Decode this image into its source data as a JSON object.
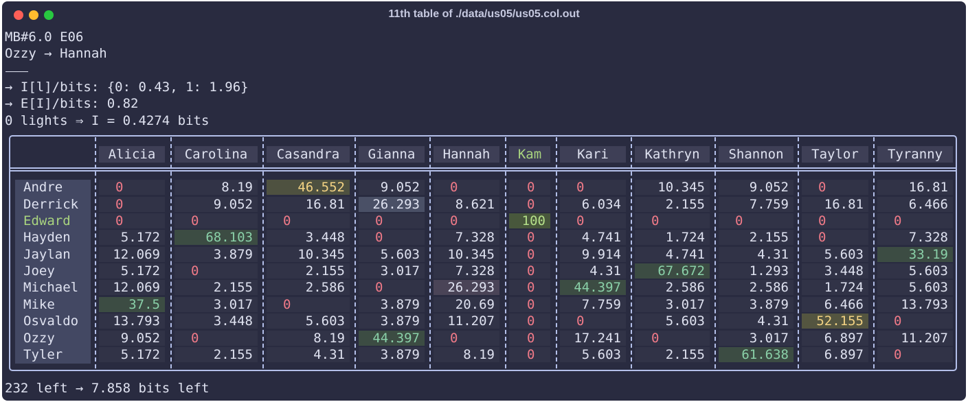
{
  "window": {
    "title": "11th table of ./data/us05/us05.col.out"
  },
  "header_lines": [
    "MB#6.0 E06",
    "Ozzy → Hannah",
    "→ I[l]/bits: {0: 0.43, 1: 1.96}",
    "→ E[I]/bits: 0.82",
    "0 lights ⇒ I = 0.4274 bits"
  ],
  "footer": "232 left → 7.858 bits left",
  "columns": [
    "Alicia",
    "Carolina",
    "Casandra",
    "Gianna",
    "Hannah",
    "Kam",
    "Kari",
    "Kathryn",
    "Shannon",
    "Taylor",
    "Tyranny"
  ],
  "rows": [
    {
      "name": "Andre",
      "values": [
        "0",
        "8.19",
        "46.552",
        "9.052",
        "0",
        "0",
        "0",
        "10.345",
        "9.052",
        "0",
        "16.81"
      ]
    },
    {
      "name": "Derrick",
      "values": [
        "0",
        "9.052",
        "16.81",
        "26.293",
        "8.621",
        "0",
        "6.034",
        "2.155",
        "7.759",
        "16.81",
        "6.466"
      ]
    },
    {
      "name": "Edward",
      "values": [
        "0",
        "0",
        "0",
        "0",
        "0",
        "100",
        "0",
        "0",
        "0",
        "0",
        "0"
      ]
    },
    {
      "name": "Hayden",
      "values": [
        "5.172",
        "68.103",
        "3.448",
        "0",
        "7.328",
        "0",
        "4.741",
        "1.724",
        "2.155",
        "0",
        "7.328"
      ]
    },
    {
      "name": "Jaylan",
      "values": [
        "12.069",
        "3.879",
        "10.345",
        "5.603",
        "10.345",
        "0",
        "9.914",
        "4.741",
        "4.31",
        "5.603",
        "33.19"
      ]
    },
    {
      "name": "Joey",
      "values": [
        "5.172",
        "0",
        "2.155",
        "3.017",
        "7.328",
        "0",
        "4.31",
        "67.672",
        "1.293",
        "3.448",
        "5.603"
      ]
    },
    {
      "name": "Michael",
      "values": [
        "12.069",
        "2.155",
        "2.586",
        "0",
        "26.293",
        "0",
        "44.397",
        "2.586",
        "2.586",
        "1.724",
        "5.603"
      ]
    },
    {
      "name": "Mike",
      "values": [
        "37.5",
        "3.017",
        "0",
        "3.879",
        "20.69",
        "0",
        "7.759",
        "3.017",
        "3.879",
        "6.466",
        "13.793"
      ]
    },
    {
      "name": "Osvaldo",
      "values": [
        "13.793",
        "3.448",
        "5.603",
        "3.879",
        "11.207",
        "0",
        "0",
        "5.603",
        "4.31",
        "52.155",
        "0"
      ]
    },
    {
      "name": "Ozzy",
      "values": [
        "9.052",
        "0",
        "8.19",
        "44.397",
        "0",
        "0",
        "17.241",
        "0",
        "3.017",
        "6.897",
        "11.207"
      ]
    },
    {
      "name": "Tyler",
      "values": [
        "5.172",
        "2.155",
        "4.31",
        "3.879",
        "8.19",
        "0",
        "5.603",
        "2.155",
        "61.638",
        "6.897",
        "0"
      ]
    }
  ],
  "colors": {
    "background": "#292b40",
    "zero": "#f07a88",
    "highlight_green": "#8ad0a8",
    "highlight_yellow": "#f2d283",
    "accent_name": "#a9d47f"
  }
}
